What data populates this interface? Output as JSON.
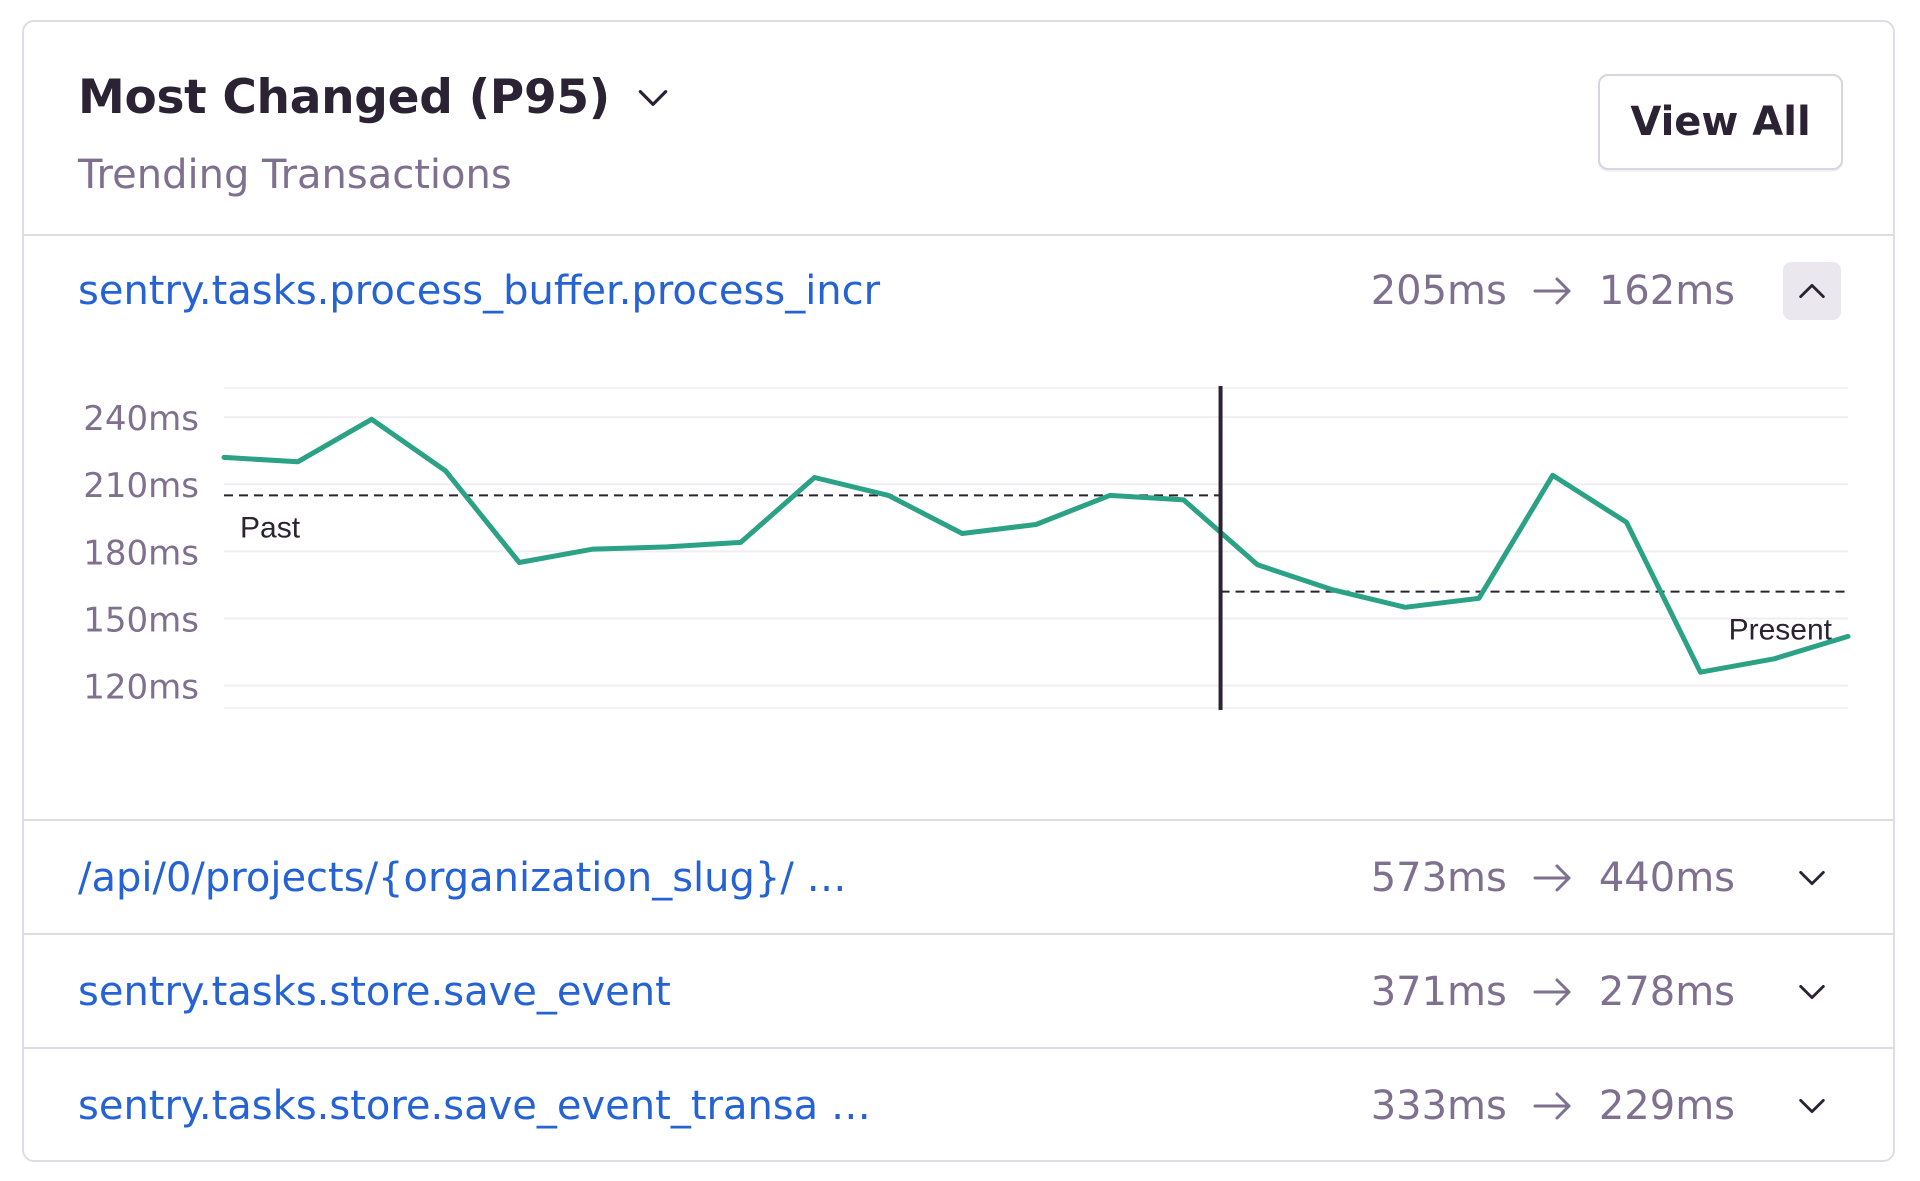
{
  "widget": {
    "title": "Most Changed (P95)",
    "subtitle": "Trending Transactions",
    "view_all_label": "View All"
  },
  "transactions": [
    {
      "name": "sentry.tasks.process_buffer.process_incr",
      "before": "205ms",
      "after": "162ms",
      "expanded": true
    },
    {
      "name": "/api/0/projects/{organization_slug}/ …",
      "before": "573ms",
      "after": "440ms",
      "expanded": false
    },
    {
      "name": "sentry.tasks.store.save_event",
      "before": "371ms",
      "after": "278ms",
      "expanded": false
    },
    {
      "name": "sentry.tasks.store.save_event_transa …",
      "before": "333ms",
      "after": "229ms",
      "expanded": false
    }
  ],
  "colors": {
    "line": "#2ba185",
    "link": "#2562d4",
    "muted": "#80708f",
    "breakpoint": "#2b2233"
  },
  "chart_data": {
    "type": "line",
    "ytick_labels": [
      "240ms",
      "210ms",
      "180ms",
      "150ms",
      "120ms"
    ],
    "ytick_values": [
      240,
      210,
      180,
      150,
      120
    ],
    "ylim": [
      110,
      253
    ],
    "x": [
      0,
      1,
      2,
      3,
      4,
      5,
      6,
      7,
      8,
      9,
      10,
      11,
      12,
      13,
      14,
      15,
      16,
      17,
      18,
      19,
      20,
      21,
      22
    ],
    "values": [
      222,
      220,
      239,
      216,
      175,
      181,
      182,
      184,
      213,
      205,
      188,
      192,
      205,
      203,
      174,
      163,
      155,
      159,
      214,
      193,
      126,
      132,
      142
    ],
    "breakpoint_x": 13.5,
    "past_value": 205,
    "present_value": 162,
    "past_label": "Past",
    "present_label": "Present",
    "grid": true
  }
}
